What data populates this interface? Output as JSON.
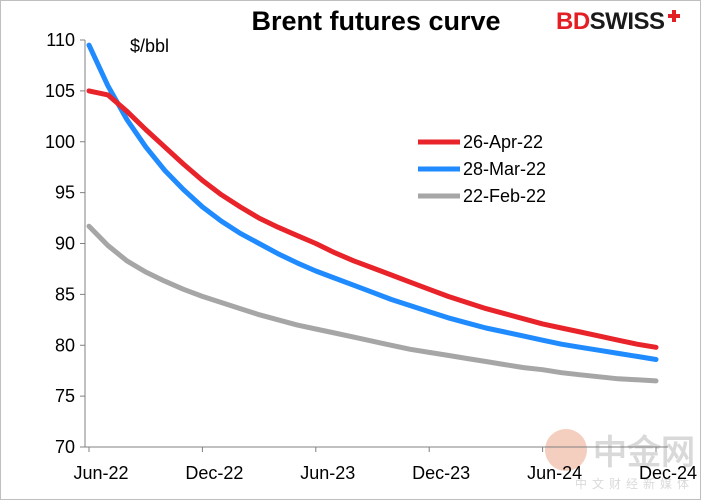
{
  "title": "Brent futures curve",
  "logo": {
    "part1": "BD",
    "part2": "SWISS"
  },
  "watermark": {
    "big": "中金网",
    "small": "中文财经新媒体"
  },
  "colors": {
    "26-Apr-22": "#e8232a",
    "28-Mar-22": "#1f8bff",
    "22-Feb-22": "#a6a6a6"
  },
  "chart_data": {
    "type": "line",
    "title": "Brent futures curve",
    "unit": "$/bbl",
    "xlabel": "",
    "ylabel": "",
    "x_tick_labels": [
      "Jun-22",
      "Dec-22",
      "Jun-23",
      "Dec-23",
      "Jun-24",
      "Dec-24"
    ],
    "ylim": [
      70,
      110
    ],
    "yticks": [
      70,
      75,
      80,
      85,
      90,
      95,
      100,
      105,
      110
    ],
    "grid": false,
    "legend_position": "right-middle",
    "x_months": [
      "Jun-22",
      "Jul-22",
      "Aug-22",
      "Sep-22",
      "Oct-22",
      "Nov-22",
      "Dec-22",
      "Jan-23",
      "Feb-23",
      "Mar-23",
      "Apr-23",
      "May-23",
      "Jun-23",
      "Jul-23",
      "Aug-23",
      "Sep-23",
      "Oct-23",
      "Nov-23",
      "Dec-23",
      "Jan-24",
      "Feb-24",
      "Mar-24",
      "Apr-24",
      "May-24",
      "Jun-24",
      "Jul-24",
      "Aug-24",
      "Sep-24",
      "Oct-24",
      "Nov-24",
      "Dec-24",
      "Jan-25"
    ],
    "series": [
      {
        "name": "26-Apr-22",
        "values": [
          105.0,
          104.6,
          103.0,
          101.2,
          99.5,
          97.8,
          96.2,
          94.8,
          93.6,
          92.5,
          91.6,
          90.8,
          90.0,
          89.1,
          88.3,
          87.6,
          86.9,
          86.2,
          85.5,
          84.8,
          84.2,
          83.6,
          83.1,
          82.6,
          82.1,
          81.7,
          81.3,
          80.9,
          80.5,
          80.1,
          79.8,
          79.5
        ]
      },
      {
        "name": "28-Mar-22",
        "values": [
          109.5,
          105.5,
          102.2,
          99.5,
          97.2,
          95.3,
          93.6,
          92.2,
          91.0,
          90.0,
          89.0,
          88.1,
          87.3,
          86.6,
          85.9,
          85.2,
          84.5,
          83.9,
          83.3,
          82.7,
          82.2,
          81.7,
          81.3,
          80.9,
          80.5,
          80.1,
          79.8,
          79.5,
          79.2,
          78.9,
          78.6,
          78.3
        ]
      },
      {
        "name": "22-Feb-22",
        "values": [
          91.7,
          89.8,
          88.3,
          87.2,
          86.3,
          85.5,
          84.8,
          84.2,
          83.6,
          83.0,
          82.5,
          82.0,
          81.6,
          81.2,
          80.8,
          80.4,
          80.0,
          79.6,
          79.3,
          79.0,
          78.7,
          78.4,
          78.1,
          77.8,
          77.6,
          77.3,
          77.1,
          76.9,
          76.7,
          76.6,
          76.5,
          76.4
        ]
      }
    ]
  }
}
